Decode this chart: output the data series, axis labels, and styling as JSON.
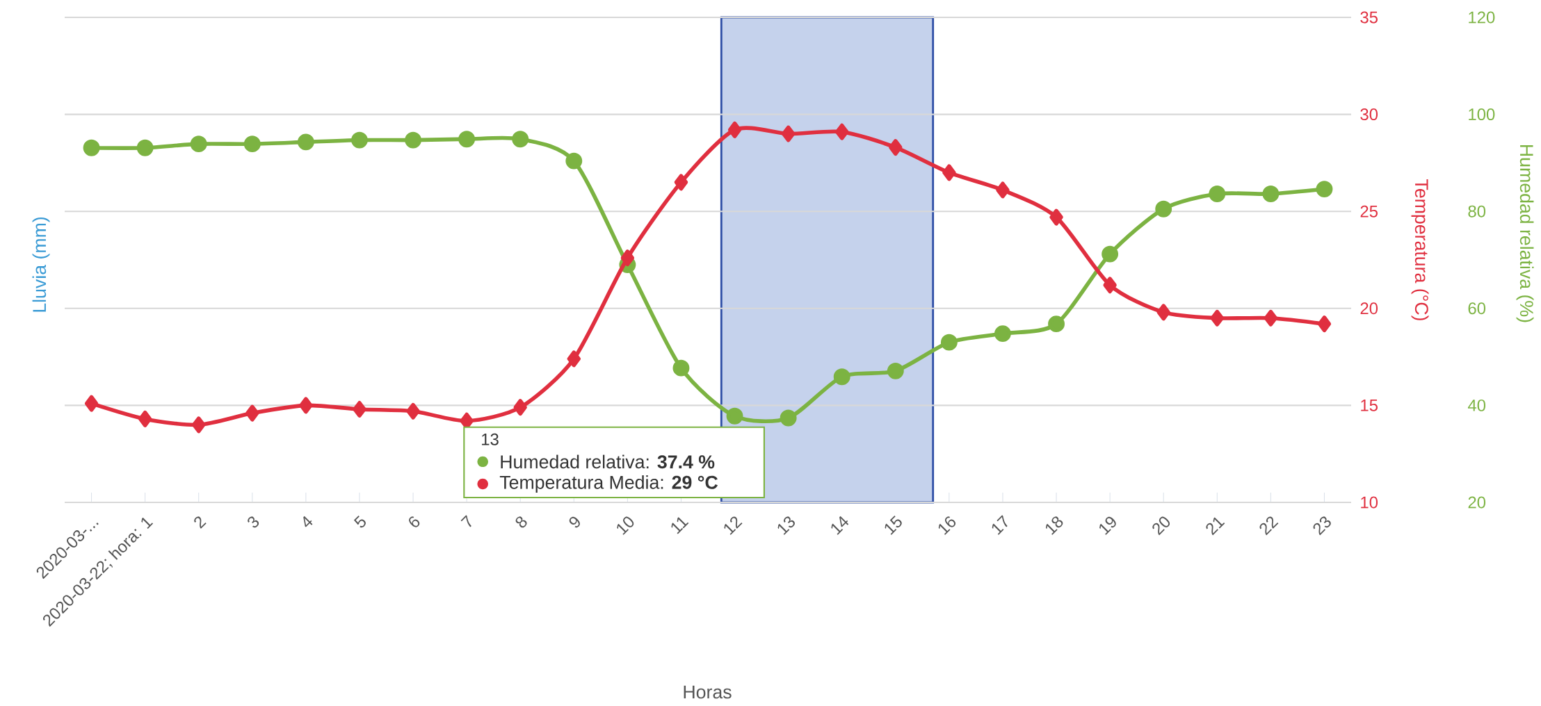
{
  "chart_data": {
    "type": "line",
    "xlabel": "Horas",
    "ylabel": "Lluvia (mm)",
    "y2label": "Temperatura (°C)",
    "y3label": "Humedad relativa (%)",
    "categories": [
      "2020-03-...",
      "2020-03-22; hora: 1",
      "2",
      "3",
      "4",
      "5",
      "6",
      "7",
      "8",
      "9",
      "10",
      "11",
      "12",
      "13",
      "14",
      "15",
      "16",
      "17",
      "18",
      "19",
      "20",
      "21",
      "22",
      "23"
    ],
    "y2lim": [
      10,
      35
    ],
    "y2ticks": [
      10,
      15,
      20,
      25,
      30,
      35
    ],
    "y3lim": [
      20,
      120
    ],
    "y3ticks": [
      20,
      40,
      60,
      80,
      100,
      120
    ],
    "grid": "y",
    "series": [
      {
        "color": "#7cb342",
        "axis": "y3",
        "marker": "circle",
        "values": [
          93.1,
          93.1,
          93.9,
          93.9,
          94.3,
          94.7,
          94.7,
          94.9,
          94.9,
          90.4,
          69.0,
          47.7,
          37.8,
          37.4,
          45.9,
          47.1,
          53.0,
          54.8,
          56.8,
          71.2,
          80.5,
          83.6,
          83.6,
          84.6
        ]
      },
      {
        "color": "#e02f3f",
        "axis": "y2",
        "marker": "diamond",
        "values": [
          15.1,
          14.3,
          14.0,
          14.6,
          15.0,
          14.8,
          14.7,
          14.2,
          14.9,
          17.4,
          22.6,
          26.5,
          29.2,
          29,
          29.1,
          28.3,
          27.0,
          26.1,
          24.7,
          21.2,
          19.8,
          19.5,
          19.5,
          19.2
        ]
      }
    ],
    "annotations": [
      "13",
      "Humedad relativa: **37.4 %**",
      "Temperatura Media: **29 °C**"
    ]
  }
}
